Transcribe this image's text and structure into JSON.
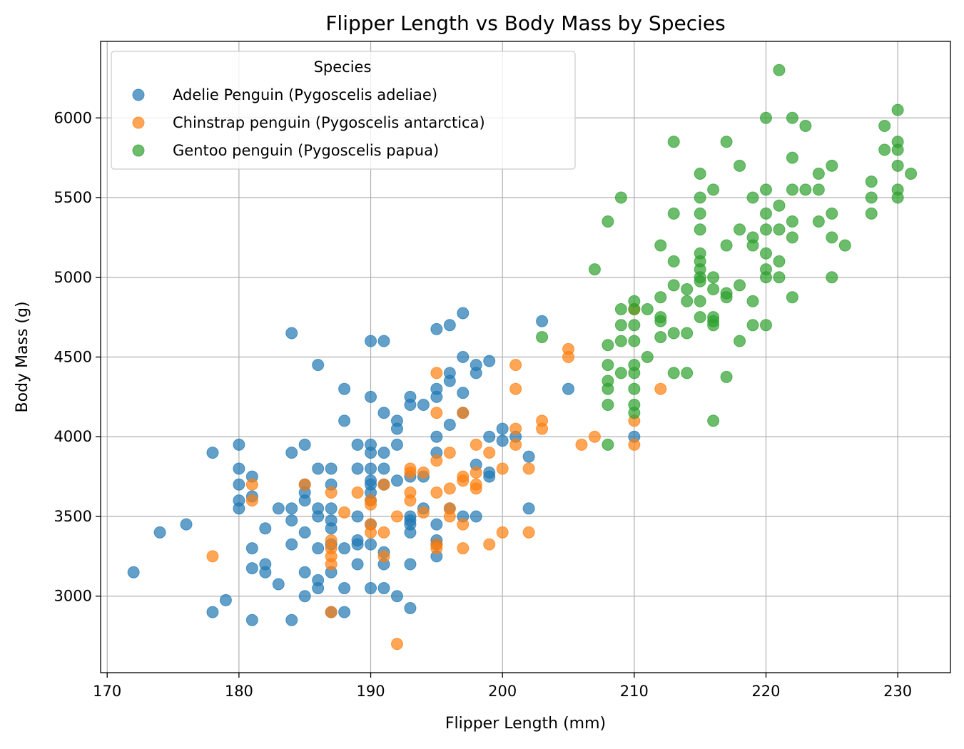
{
  "chart_data": {
    "type": "scatter",
    "title": "Flipper Length vs Body Mass by Species",
    "xlabel": "Flipper Length (mm)",
    "ylabel": "Body Mass (g)",
    "xlim": [
      169.5,
      234
    ],
    "ylim": [
      2520,
      6480
    ],
    "xticks": [
      170,
      180,
      190,
      200,
      210,
      220,
      230
    ],
    "yticks": [
      3000,
      3500,
      4000,
      4500,
      5000,
      5500,
      6000
    ],
    "grid": true,
    "legend": {
      "title": "Species",
      "placement": "top-left"
    },
    "marker_alpha": 0.7,
    "series": [
      {
        "name": "Adelie Penguin (Pygoscelis adeliae)",
        "color": "#1f77b4",
        "points": [
          [
            172,
            3150
          ],
          [
            174,
            3400
          ],
          [
            176,
            3450
          ],
          [
            178,
            3900
          ],
          [
            178,
            2900
          ],
          [
            179,
            2975
          ],
          [
            180,
            3950
          ],
          [
            180,
            3800
          ],
          [
            180,
            3700
          ],
          [
            180,
            3600
          ],
          [
            180,
            3550
          ],
          [
            181,
            3750
          ],
          [
            181,
            3625
          ],
          [
            181,
            3300
          ],
          [
            181,
            3175
          ],
          [
            181,
            2850
          ],
          [
            182,
            3425
          ],
          [
            182,
            3200
          ],
          [
            182,
            3150
          ],
          [
            183,
            3550
          ],
          [
            183,
            3075
          ],
          [
            184,
            4650
          ],
          [
            184,
            3900
          ],
          [
            184,
            3550
          ],
          [
            184,
            3475
          ],
          [
            184,
            3325
          ],
          [
            184,
            2850
          ],
          [
            185,
            3950
          ],
          [
            185,
            3700
          ],
          [
            185,
            3650
          ],
          [
            185,
            3600
          ],
          [
            185,
            3400
          ],
          [
            185,
            3150
          ],
          [
            185,
            3000
          ],
          [
            186,
            4450
          ],
          [
            186,
            3800
          ],
          [
            186,
            3550
          ],
          [
            186,
            3500
          ],
          [
            186,
            3300
          ],
          [
            186,
            3100
          ],
          [
            186,
            3050
          ],
          [
            187,
            3800
          ],
          [
            187,
            3700
          ],
          [
            187,
            3550
          ],
          [
            187,
            3475
          ],
          [
            187,
            3425
          ],
          [
            187,
            3325
          ],
          [
            187,
            3150
          ],
          [
            187,
            2900
          ],
          [
            188,
            4300
          ],
          [
            188,
            4100
          ],
          [
            188,
            3300
          ],
          [
            188,
            3050
          ],
          [
            188,
            2900
          ],
          [
            189,
            3950
          ],
          [
            189,
            3800
          ],
          [
            189,
            3500
          ],
          [
            189,
            3350
          ],
          [
            189,
            3325
          ],
          [
            189,
            3200
          ],
          [
            190,
            4600
          ],
          [
            190,
            4250
          ],
          [
            190,
            3950
          ],
          [
            190,
            3900
          ],
          [
            190,
            3800
          ],
          [
            190,
            3725
          ],
          [
            190,
            3700
          ],
          [
            190,
            3650
          ],
          [
            190,
            3600
          ],
          [
            190,
            3450
          ],
          [
            190,
            3325
          ],
          [
            190,
            3050
          ],
          [
            191,
            4600
          ],
          [
            191,
            4150
          ],
          [
            191,
            3900
          ],
          [
            191,
            3800
          ],
          [
            191,
            3700
          ],
          [
            191,
            3275
          ],
          [
            191,
            3200
          ],
          [
            191,
            3050
          ],
          [
            192,
            4100
          ],
          [
            192,
            4050
          ],
          [
            192,
            3950
          ],
          [
            192,
            3725
          ],
          [
            192,
            3000
          ],
          [
            193,
            4250
          ],
          [
            193,
            4200
          ],
          [
            193,
            3750
          ],
          [
            193,
            3500
          ],
          [
            193,
            3475
          ],
          [
            193,
            3450
          ],
          [
            193,
            3400
          ],
          [
            193,
            3200
          ],
          [
            193,
            2925
          ],
          [
            194,
            4200
          ],
          [
            194,
            3750
          ],
          [
            194,
            3550
          ],
          [
            195,
            4675
          ],
          [
            195,
            4300
          ],
          [
            195,
            4250
          ],
          [
            195,
            4000
          ],
          [
            195,
            3900
          ],
          [
            195,
            3450
          ],
          [
            195,
            3350
          ],
          [
            195,
            3325
          ],
          [
            195,
            3250
          ],
          [
            196,
            4700
          ],
          [
            196,
            4400
          ],
          [
            196,
            4350
          ],
          [
            196,
            4075
          ],
          [
            196,
            3550
          ],
          [
            197,
            4775
          ],
          [
            197,
            4500
          ],
          [
            197,
            4275
          ],
          [
            197,
            4150
          ],
          [
            197,
            3500
          ],
          [
            198,
            4450
          ],
          [
            198,
            4400
          ],
          [
            198,
            3825
          ],
          [
            198,
            3500
          ],
          [
            199,
            4475
          ],
          [
            199,
            4000
          ],
          [
            199,
            3775
          ],
          [
            199,
            3750
          ],
          [
            200,
            4050
          ],
          [
            200,
            3975
          ],
          [
            201,
            4000
          ],
          [
            202,
            3875
          ],
          [
            202,
            3550
          ],
          [
            203,
            4725
          ],
          [
            205,
            4300
          ],
          [
            210,
            4000
          ]
        ]
      },
      {
        "name": "Chinstrap penguin (Pygoscelis antarctica)",
        "color": "#ff7f0e",
        "points": [
          [
            178,
            3250
          ],
          [
            181,
            3700
          ],
          [
            181,
            3600
          ],
          [
            185,
            3700
          ],
          [
            187,
            3650
          ],
          [
            187,
            3350
          ],
          [
            187,
            3300
          ],
          [
            187,
            3250
          ],
          [
            187,
            3200
          ],
          [
            187,
            2900
          ],
          [
            188,
            3525
          ],
          [
            189,
            3650
          ],
          [
            190,
            3600
          ],
          [
            190,
            3575
          ],
          [
            190,
            3450
          ],
          [
            190,
            3400
          ],
          [
            191,
            3700
          ],
          [
            191,
            3400
          ],
          [
            191,
            3250
          ],
          [
            192,
            3500
          ],
          [
            192,
            2700
          ],
          [
            193,
            3800
          ],
          [
            193,
            3775
          ],
          [
            193,
            3650
          ],
          [
            193,
            3600
          ],
          [
            194,
            3775
          ],
          [
            194,
            3525
          ],
          [
            195,
            4400
          ],
          [
            195,
            4150
          ],
          [
            195,
            3850
          ],
          [
            195,
            3650
          ],
          [
            195,
            3325
          ],
          [
            195,
            3300
          ],
          [
            196,
            3900
          ],
          [
            196,
            3675
          ],
          [
            196,
            3550
          ],
          [
            196,
            3500
          ],
          [
            197,
            4150
          ],
          [
            197,
            3750
          ],
          [
            197,
            3725
          ],
          [
            197,
            3450
          ],
          [
            197,
            3300
          ],
          [
            198,
            3950
          ],
          [
            198,
            3775
          ],
          [
            198,
            3700
          ],
          [
            198,
            3675
          ],
          [
            199,
            3900
          ],
          [
            199,
            3325
          ],
          [
            200,
            3800
          ],
          [
            200,
            3400
          ],
          [
            201,
            4450
          ],
          [
            201,
            4300
          ],
          [
            201,
            4050
          ],
          [
            201,
            3950
          ],
          [
            202,
            3800
          ],
          [
            202,
            3400
          ],
          [
            203,
            4100
          ],
          [
            203,
            4050
          ],
          [
            205,
            4550
          ],
          [
            205,
            4500
          ],
          [
            206,
            3950
          ],
          [
            207,
            4000
          ],
          [
            210,
            4800
          ],
          [
            210,
            4100
          ],
          [
            210,
            3950
          ],
          [
            212,
            4300
          ]
        ]
      },
      {
        "name": "Gentoo penguin (Pygoscelis papua)",
        "color": "#2ca02c",
        "points": [
          [
            203,
            4625
          ],
          [
            207,
            5050
          ],
          [
            208,
            5350
          ],
          [
            208,
            4575
          ],
          [
            208,
            4450
          ],
          [
            208,
            4350
          ],
          [
            208,
            4300
          ],
          [
            208,
            4200
          ],
          [
            208,
            3950
          ],
          [
            209,
            5500
          ],
          [
            209,
            4800
          ],
          [
            209,
            4700
          ],
          [
            209,
            4600
          ],
          [
            209,
            4400
          ],
          [
            210,
            4850
          ],
          [
            210,
            4800
          ],
          [
            210,
            4700
          ],
          [
            210,
            4600
          ],
          [
            210,
            4450
          ],
          [
            210,
            4400
          ],
          [
            210,
            4300
          ],
          [
            210,
            4200
          ],
          [
            210,
            4150
          ],
          [
            211,
            4800
          ],
          [
            211,
            4500
          ],
          [
            212,
            5200
          ],
          [
            212,
            4875
          ],
          [
            212,
            4750
          ],
          [
            212,
            4725
          ],
          [
            212,
            4625
          ],
          [
            213,
            5850
          ],
          [
            213,
            5400
          ],
          [
            213,
            5100
          ],
          [
            213,
            4950
          ],
          [
            213,
            4650
          ],
          [
            213,
            4400
          ],
          [
            214,
            4925
          ],
          [
            214,
            4850
          ],
          [
            214,
            4650
          ],
          [
            214,
            4400
          ],
          [
            215,
            5650
          ],
          [
            215,
            5500
          ],
          [
            215,
            5400
          ],
          [
            215,
            5300
          ],
          [
            215,
            5150
          ],
          [
            215,
            5100
          ],
          [
            215,
            5050
          ],
          [
            215,
            5000
          ],
          [
            215,
            4975
          ],
          [
            215,
            4850
          ],
          [
            215,
            4750
          ],
          [
            216,
            5550
          ],
          [
            216,
            5000
          ],
          [
            216,
            4925
          ],
          [
            216,
            4750
          ],
          [
            216,
            4725
          ],
          [
            216,
            4700
          ],
          [
            216,
            4100
          ],
          [
            217,
            5850
          ],
          [
            217,
            5200
          ],
          [
            217,
            4900
          ],
          [
            217,
            4875
          ],
          [
            217,
            4375
          ],
          [
            218,
            5700
          ],
          [
            218,
            5300
          ],
          [
            218,
            4950
          ],
          [
            218,
            4600
          ],
          [
            219,
            5500
          ],
          [
            219,
            5250
          ],
          [
            219,
            5200
          ],
          [
            219,
            4850
          ],
          [
            219,
            4700
          ],
          [
            220,
            6000
          ],
          [
            220,
            5550
          ],
          [
            220,
            5400
          ],
          [
            220,
            5300
          ],
          [
            220,
            5150
          ],
          [
            220,
            5050
          ],
          [
            220,
            5000
          ],
          [
            220,
            4700
          ],
          [
            221,
            6300
          ],
          [
            221,
            5450
          ],
          [
            221,
            5300
          ],
          [
            221,
            5100
          ],
          [
            221,
            5000
          ],
          [
            222,
            6000
          ],
          [
            222,
            5750
          ],
          [
            222,
            5550
          ],
          [
            222,
            5350
          ],
          [
            222,
            5250
          ],
          [
            222,
            4875
          ],
          [
            223,
            5950
          ],
          [
            223,
            5550
          ],
          [
            224,
            5650
          ],
          [
            224,
            5550
          ],
          [
            224,
            5350
          ],
          [
            225,
            5700
          ],
          [
            225,
            5400
          ],
          [
            225,
            5250
          ],
          [
            225,
            5000
          ],
          [
            226,
            5200
          ],
          [
            228,
            5600
          ],
          [
            228,
            5500
          ],
          [
            228,
            5400
          ],
          [
            229,
            5950
          ],
          [
            229,
            5800
          ],
          [
            230,
            6050
          ],
          [
            230,
            5850
          ],
          [
            230,
            5800
          ],
          [
            230,
            5700
          ],
          [
            230,
            5550
          ],
          [
            230,
            5500
          ],
          [
            231,
            5650
          ]
        ]
      }
    ]
  }
}
